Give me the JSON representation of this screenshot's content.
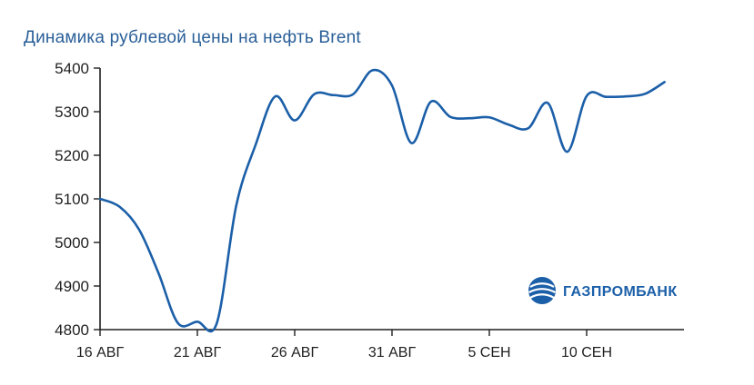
{
  "brand": {
    "name": "ГАЗПРОМБАНК",
    "color": "#1b5fa8"
  },
  "colors": {
    "title": "#2a5f98",
    "line": "#1b5fa8",
    "axis": "#1f1f1f"
  },
  "chart_data": {
    "type": "line",
    "title": "Динамика рублевой цены на нефть Brent",
    "xlabel": "",
    "ylabel": "",
    "ylim": [
      4800,
      5400
    ],
    "yticks": [
      4800,
      4900,
      5000,
      5100,
      5200,
      5300,
      5400
    ],
    "xlim": [
      "2018-08-16",
      "2018-09-15"
    ],
    "xticks": [
      {
        "date": "2018-08-16",
        "label": "16 АВГ"
      },
      {
        "date": "2018-08-21",
        "label": "21 АВГ"
      },
      {
        "date": "2018-08-26",
        "label": "26 АВГ"
      },
      {
        "date": "2018-08-31",
        "label": "31 АВГ"
      },
      {
        "date": "2018-09-05",
        "label": "5 СЕН"
      },
      {
        "date": "2018-09-10",
        "label": "10 СЕН"
      }
    ],
    "grid": false,
    "legend": "none",
    "series": [
      {
        "points": [
          [
            "2018-08-16",
            5100
          ],
          [
            "2018-08-17",
            5082
          ],
          [
            "2018-08-18",
            5030
          ],
          [
            "2018-08-19",
            4930
          ],
          [
            "2018-08-20",
            4815
          ],
          [
            "2018-08-21",
            4818
          ],
          [
            "2018-08-22",
            4815
          ],
          [
            "2018-08-23",
            5085
          ],
          [
            "2018-08-24",
            5225
          ],
          [
            "2018-08-25",
            5335
          ],
          [
            "2018-08-26",
            5280
          ],
          [
            "2018-08-27",
            5340
          ],
          [
            "2018-08-28",
            5338
          ],
          [
            "2018-08-29",
            5340
          ],
          [
            "2018-08-30",
            5395
          ],
          [
            "2018-08-31",
            5360
          ],
          [
            "2018-09-01",
            5228
          ],
          [
            "2018-09-02",
            5323
          ],
          [
            "2018-09-03",
            5288
          ],
          [
            "2018-09-04",
            5285
          ],
          [
            "2018-09-05",
            5287
          ],
          [
            "2018-09-06",
            5270
          ],
          [
            "2018-09-07",
            5262
          ],
          [
            "2018-09-08",
            5320
          ],
          [
            "2018-09-09",
            5208
          ],
          [
            "2018-09-10",
            5336
          ],
          [
            "2018-09-11",
            5334
          ],
          [
            "2018-09-12",
            5335
          ],
          [
            "2018-09-13",
            5341
          ],
          [
            "2018-09-14",
            5368
          ]
        ]
      }
    ]
  }
}
